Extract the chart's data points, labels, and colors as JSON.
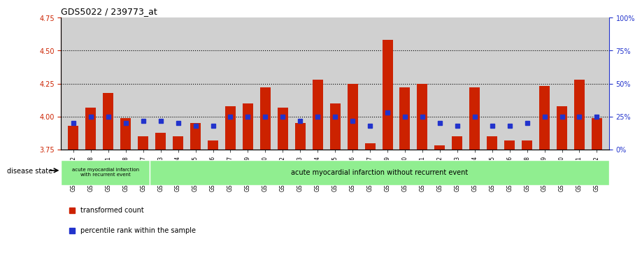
{
  "title": "GDS5022 / 239773_at",
  "samples": [
    "GSM1167072",
    "GSM1167078",
    "GSM1167081",
    "GSM1167088",
    "GSM1167097",
    "GSM1167073",
    "GSM1167074",
    "GSM1167075",
    "GSM1167076",
    "GSM1167077",
    "GSM1167079",
    "GSM1167080",
    "GSM1167082",
    "GSM1167083",
    "GSM1167084",
    "GSM1167085",
    "GSM1167086",
    "GSM1167087",
    "GSM1167089",
    "GSM1167090",
    "GSM1167091",
    "GSM1167092",
    "GSM1167093",
    "GSM1167094",
    "GSM1167095",
    "GSM1167096",
    "GSM1167098",
    "GSM1167099",
    "GSM1167100",
    "GSM1167101",
    "GSM1167122"
  ],
  "transformed_count": [
    3.93,
    4.07,
    4.18,
    3.99,
    3.85,
    3.88,
    3.85,
    3.95,
    3.82,
    4.08,
    4.1,
    4.22,
    4.07,
    3.95,
    4.28,
    4.1,
    4.25,
    3.8,
    4.58,
    4.22,
    4.25,
    3.78,
    3.85,
    4.22,
    3.85,
    3.82,
    3.82,
    4.23,
    4.08,
    4.28,
    3.99
  ],
  "percentile_rank": [
    20,
    25,
    25,
    20,
    22,
    22,
    20,
    18,
    18,
    25,
    25,
    25,
    25,
    22,
    25,
    25,
    22,
    18,
    28,
    25,
    25,
    20,
    18,
    25,
    18,
    18,
    20,
    25,
    25,
    25,
    25
  ],
  "bar_color": "#cc2200",
  "dot_color": "#2233cc",
  "baseline": 3.75,
  "ylim_left": [
    3.75,
    4.75
  ],
  "ylim_right": [
    0,
    100
  ],
  "yticks_left": [
    3.75,
    4.0,
    4.25,
    4.5,
    4.75
  ],
  "yticks_right": [
    0,
    25,
    50,
    75,
    100
  ],
  "hlines": [
    4.0,
    4.25,
    4.5
  ],
  "disease_group1_count": 5,
  "disease_group1_label": "acute myocardial infarction\nwith recurrent event",
  "disease_group2_label": "acute myocardial infarction without recurrent event",
  "disease_state_label": "disease state",
  "legend_bar_label": "transformed count",
  "legend_dot_label": "percentile rank within the sample",
  "bg_color": "#d0d0d0",
  "group1_bg": "#90ee90",
  "group2_bg": "#90ee90",
  "title_color": "#000000",
  "left_axis_color": "#cc2200",
  "right_axis_color": "#2233cc"
}
